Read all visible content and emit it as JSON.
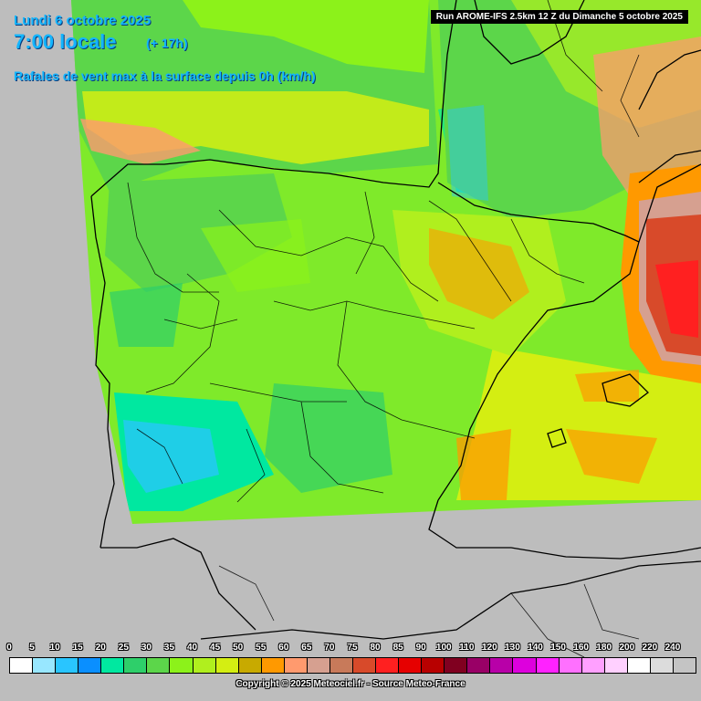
{
  "header": {
    "date": "Lundi 6 octobre 2025",
    "time": "7:00 locale",
    "lead": "(+ 17h)",
    "parameter": "Rafales de vent max à la surface depuis 0h (km/h)",
    "run": "Run AROME-IFS 2.5km 12 Z du Dimanche 5 octobre 2025"
  },
  "legend": {
    "labels": [
      "0",
      "5",
      "10",
      "15",
      "20",
      "25",
      "30",
      "35",
      "40",
      "45",
      "50",
      "55",
      "60",
      "65",
      "70",
      "75",
      "80",
      "85",
      "90",
      "100",
      "110",
      "120",
      "130",
      "140",
      "150",
      "160",
      "180",
      "200",
      "220",
      "240"
    ],
    "colors": [
      "#ffffff",
      "#98e7ff",
      "#29c5ff",
      "#0a8fff",
      "#00e8a0",
      "#2ecf6a",
      "#5cd64a",
      "#8cf21a",
      "#b0ef1e",
      "#d4ee12",
      "#c8aa00",
      "#ff9900",
      "#ff9a6e",
      "#d6a090",
      "#c87a5a",
      "#d84a2a",
      "#ff2020",
      "#e60000",
      "#b80000",
      "#800020",
      "#990066",
      "#b800a8",
      "#dd00dd",
      "#ff22ff",
      "#ff70ff",
      "#ffa0ff",
      "#ffd0ff",
      "#ffffff",
      "#dcdcdc",
      "#c4c4c4"
    ]
  },
  "footer": {
    "copyright": "Copyright © 2025 Meteociel.fr - Source Meteo-France"
  },
  "colors": {
    "background": "#bdbdbd",
    "title_text": "#13b5ff",
    "sea_green": "#6ee05a",
    "land_green": "#7fea2a",
    "gust_red": "#e22020"
  }
}
